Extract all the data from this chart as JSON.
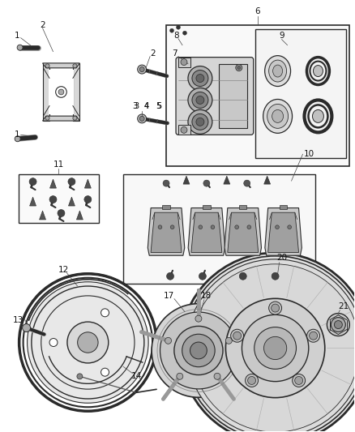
{
  "bg_color": "#ffffff",
  "line_color": "#2a2a2a",
  "label_color": "#111111",
  "fig_width": 4.38,
  "fig_height": 5.33,
  "dpi": 100
}
